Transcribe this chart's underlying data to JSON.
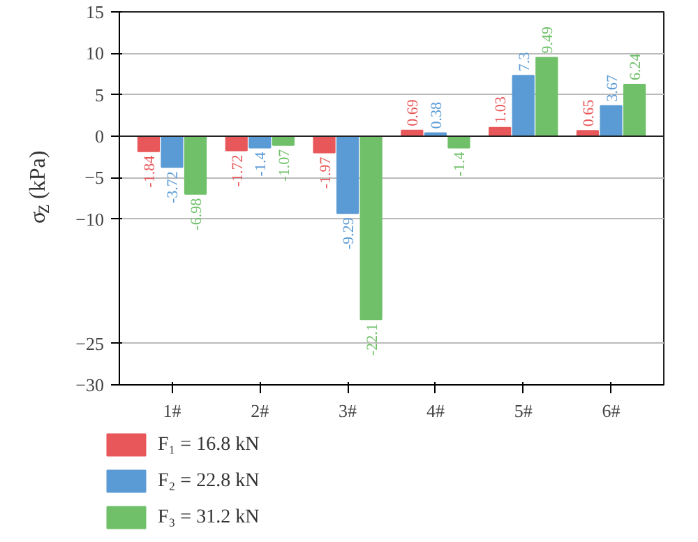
{
  "chart_data": {
    "type": "bar",
    "ylabel": "σ$_{Z}$ (kPa)",
    "categories": [
      "1#",
      "2#",
      "3#",
      "4#",
      "5#",
      "6#"
    ],
    "series": [
      {
        "name": "F₁ = 16.8 kN",
        "color": "#e8575a",
        "values": [
          -1.84,
          -1.72,
          -1.97,
          0.69,
          1.03,
          0.65
        ]
      },
      {
        "name": "F₂ = 22.8 kN",
        "color": "#5b9bd5",
        "values": [
          -3.72,
          -1.4,
          -9.29,
          0.38,
          7.3,
          3.67
        ]
      },
      {
        "name": "F₃ = 31.2 kN",
        "color": "#70c06a",
        "values": [
          -6.98,
          -1.07,
          -22.1,
          -1.4,
          9.49,
          6.24
        ]
      }
    ],
    "ylim": [
      -30,
      15
    ],
    "yticks": [
      15,
      10,
      5,
      0,
      -5,
      -10,
      -25,
      -30
    ],
    "grid": "y",
    "legend": "bottom",
    "data_labels": true
  }
}
